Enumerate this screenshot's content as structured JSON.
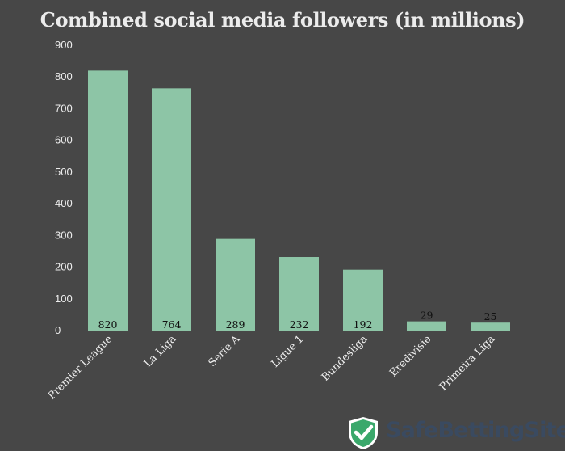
{
  "chart_data": {
    "type": "bar",
    "title": "Combined social media followers (in millions)",
    "categories": [
      "Premier League",
      "La Liga",
      "Serie A",
      "Ligue 1",
      "Bundesliga",
      "Eredivisie",
      "Primeira Liga"
    ],
    "values": [
      820,
      764,
      289,
      232,
      192,
      29,
      25
    ],
    "data_labels": [
      "820",
      "764",
      "289",
      "232",
      "192",
      "29",
      "25"
    ],
    "ylim": [
      0,
      900
    ],
    "yticks": [
      0,
      100,
      200,
      300,
      400,
      500,
      600,
      700,
      800,
      900
    ],
    "ytick_labels": [
      "0",
      "100",
      "200",
      "300",
      "400",
      "500",
      "600",
      "700",
      "800",
      "900"
    ],
    "xlabel": "",
    "ylabel": "",
    "grid": false,
    "bar_color": "#8dc5a6",
    "background_color": "#474747",
    "text_color": "#eeeeee"
  },
  "logo": {
    "text": "SafeBettingSites",
    "name": "shield-check-icon",
    "shield_color": "#3aa86b",
    "text_color": "#3a4a60"
  }
}
